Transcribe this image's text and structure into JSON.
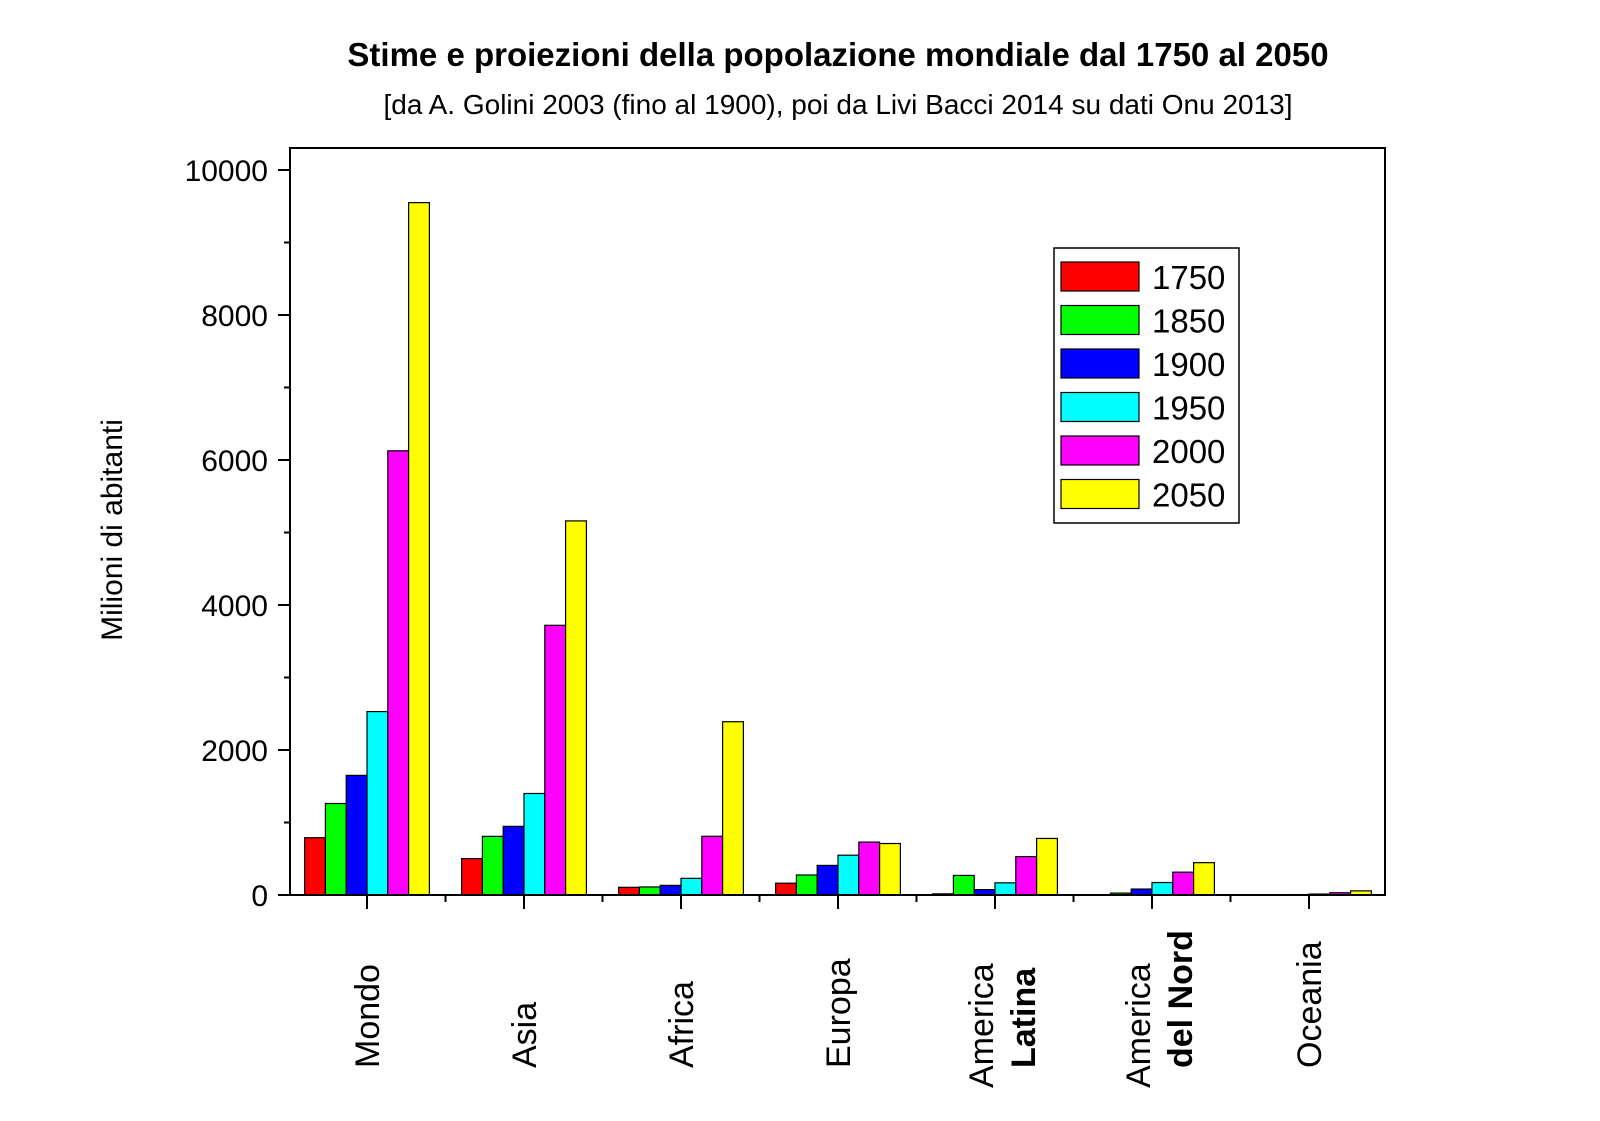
{
  "chart_data": {
    "type": "bar",
    "title": "Stime e proiezioni della popolazione mondiale dal 1750 al 2050",
    "subtitle": "[da A. Golini 2003 (fino al 1900), poi da Livi Bacci 2014 su dati Onu 2013]",
    "xlabel": "",
    "ylabel": "Milioni di abitanti",
    "ylim": [
      0,
      10000
    ],
    "yticks": [
      "0",
      "2000",
      "4000",
      "6000",
      "8000",
      "10000"
    ],
    "ytick_values": [
      0,
      2000,
      4000,
      6000,
      8000,
      10000
    ],
    "grid": false,
    "legend_position": "top-right",
    "categories": [
      {
        "line1": "Mondo",
        "line2": ""
      },
      {
        "line1": "Asia",
        "line2": ""
      },
      {
        "line1": "Africa",
        "line2": ""
      },
      {
        "line1": "Europa",
        "line2": ""
      },
      {
        "line1": "America",
        "line2": "Latina"
      },
      {
        "line1": "America",
        "line2": "del Nord"
      },
      {
        "line1": "Oceania",
        "line2": ""
      }
    ],
    "series": [
      {
        "name": "1750",
        "color": "#ff0000",
        "values": [
          790,
          502,
          106,
          163,
          16,
          2,
          2
        ]
      },
      {
        "name": "1850",
        "color": "#00ff00",
        "values": [
          1262,
          809,
          111,
          276,
          270,
          26,
          2
        ]
      },
      {
        "name": "1900",
        "color": "#0000ff",
        "values": [
          1650,
          947,
          133,
          408,
          74,
          82,
          6
        ]
      },
      {
        "name": "1950",
        "color": "#00ffff",
        "values": [
          2530,
          1400,
          230,
          549,
          168,
          172,
          13
        ]
      },
      {
        "name": "2000",
        "color": "#ff00ff",
        "values": [
          6127,
          3720,
          810,
          730,
          530,
          315,
          31
        ]
      },
      {
        "name": "2050",
        "color": "#ffff00",
        "values": [
          9550,
          5160,
          2390,
          710,
          780,
          446,
          57
        ]
      }
    ]
  }
}
